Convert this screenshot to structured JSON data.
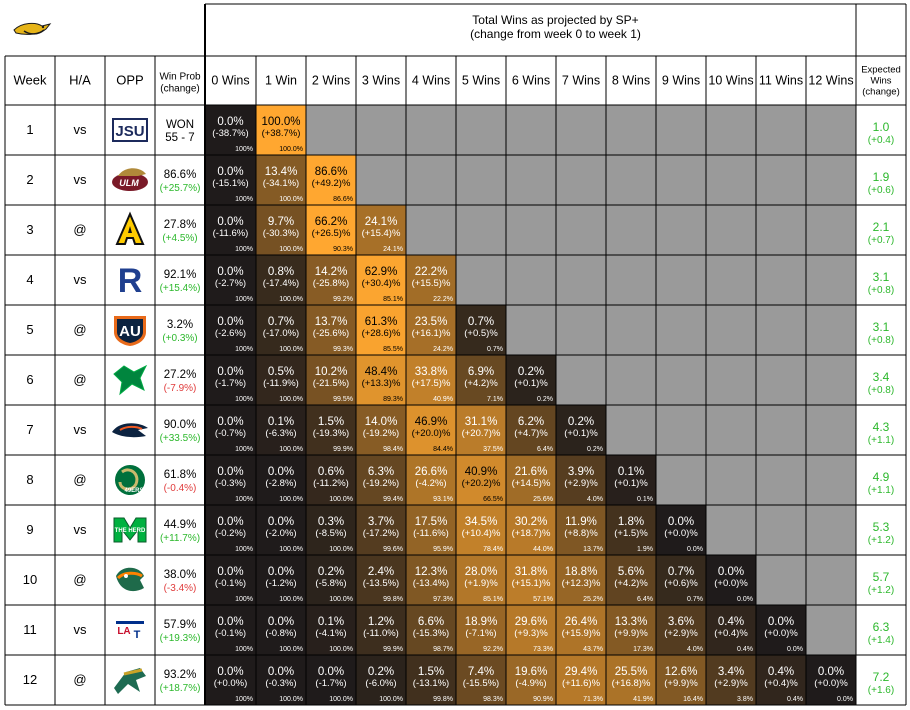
{
  "chart_data": {
    "type": "table",
    "title_line1": "Total Wins as projected by SP+",
    "title_line2": "(change from week 0 to week 1)",
    "header": {
      "week": "Week",
      "ha": "H/A",
      "opp": "OPP",
      "winprob_line1": "Win Prob",
      "winprob_line2": "(change)",
      "expected_line1": "Expected",
      "expected_line2": "Wins",
      "expected_line3": "(change)"
    },
    "win_columns": [
      "0 Wins",
      "1 Win",
      "2 Wins",
      "3 Wins",
      "4 Wins",
      "5 Wins",
      "6 Wins",
      "7 Wins",
      "8 Wins",
      "9 Wins",
      "10 Wins",
      "11 Wins",
      "12 Wins"
    ],
    "logos": {
      "team": "golden-eagle-logo",
      "opponents": [
        "jsu-logo",
        "ulm-logo",
        "app-state-logo",
        "rice-logo",
        "auburn-logo",
        "north-texas-logo",
        "utsa-logo",
        "charlotte-logo",
        "marshall-logo",
        "utep-logo",
        "louisiana-tech-logo",
        "uab-logo"
      ]
    },
    "colors": {
      "dark": "#1f1b1b",
      "bright": "#ffa730",
      "gray": "#9a9a9a",
      "positive": "#2db82d",
      "negative": "#e03c3c"
    },
    "rows": [
      {
        "week": "1",
        "ha": "vs",
        "wp_main": "WON",
        "wp_sub": "55 - 7",
        "wp_sub_sign": "neutral",
        "exp": "1.0",
        "exp_change": "(+0.4)",
        "cells": [
          [
            "0.0%",
            "(-38.7%)",
            "100%"
          ],
          [
            "100.0%",
            "(+38.7%)",
            "100.0%"
          ]
        ]
      },
      {
        "week": "2",
        "ha": "vs",
        "wp_main": "86.6%",
        "wp_sub": "(+25.7%)",
        "wp_sub_sign": "pos",
        "exp": "1.9",
        "exp_change": "(+0.6)",
        "cells": [
          [
            "0.0%",
            "(-15.1%)",
            "100%"
          ],
          [
            "13.4%",
            "(-34.1%)",
            "100.0%"
          ],
          [
            "86.6%",
            "(+49.2)%",
            "86.6%"
          ]
        ]
      },
      {
        "week": "3",
        "ha": "@",
        "wp_main": "27.8%",
        "wp_sub": "(+4.5%)",
        "wp_sub_sign": "pos",
        "exp": "2.1",
        "exp_change": "(+0.7)",
        "cells": [
          [
            "0.0%",
            "(-11.6%)",
            "100%"
          ],
          [
            "9.7%",
            "(-30.3%)",
            "100.0%"
          ],
          [
            "66.2%",
            "(+26.5)%",
            "90.3%"
          ],
          [
            "24.1%",
            "(+15.4)%",
            "24.1%"
          ]
        ]
      },
      {
        "week": "4",
        "ha": "vs",
        "wp_main": "92.1%",
        "wp_sub": "(+15.4%)",
        "wp_sub_sign": "pos",
        "exp": "3.1",
        "exp_change": "(+0.8)",
        "cells": [
          [
            "0.0%",
            "(-2.7%)",
            "100%"
          ],
          [
            "0.8%",
            "(-17.4%)",
            "100.0%"
          ],
          [
            "14.2%",
            "(-25.8%)",
            "99.2%"
          ],
          [
            "62.9%",
            "(+30.4)%",
            "85.1%"
          ],
          [
            "22.2%",
            "(+15.5)%",
            "22.2%"
          ]
        ]
      },
      {
        "week": "5",
        "ha": "@",
        "wp_main": "3.2%",
        "wp_sub": "(+0.3%)",
        "wp_sub_sign": "pos",
        "exp": "3.1",
        "exp_change": "(+0.8)",
        "cells": [
          [
            "0.0%",
            "(-2.6%)",
            "100%"
          ],
          [
            "0.7%",
            "(-17.0%)",
            "100.0%"
          ],
          [
            "13.7%",
            "(-25.6%)",
            "99.3%"
          ],
          [
            "61.3%",
            "(+28.6)%",
            "85.5%"
          ],
          [
            "23.5%",
            "(+16.1)%",
            "24.2%"
          ],
          [
            "0.7%",
            "(+0.5)%",
            "0.7%"
          ]
        ]
      },
      {
        "week": "6",
        "ha": "@",
        "wp_main": "27.2%",
        "wp_sub": "(-7.9%)",
        "wp_sub_sign": "neg",
        "exp": "3.4",
        "exp_change": "(+0.8)",
        "cells": [
          [
            "0.0%",
            "(-1.7%)",
            "100%"
          ],
          [
            "0.5%",
            "(-11.9%)",
            "100.0%"
          ],
          [
            "10.2%",
            "(-21.5%)",
            "99.5%"
          ],
          [
            "48.4%",
            "(+13.3)%",
            "89.3%"
          ],
          [
            "33.8%",
            "(+17.5)%",
            "40.9%"
          ],
          [
            "6.9%",
            "(+4.2)%",
            "7.1%"
          ],
          [
            "0.2%",
            "(+0.1)%",
            "0.2%"
          ]
        ]
      },
      {
        "week": "7",
        "ha": "vs",
        "wp_main": "90.0%",
        "wp_sub": "(+33.5%)",
        "wp_sub_sign": "pos",
        "exp": "4.3",
        "exp_change": "(+1.1)",
        "cells": [
          [
            "0.0%",
            "(-0.7%)",
            "100%"
          ],
          [
            "0.1%",
            "(-6.3%)",
            "100.0%"
          ],
          [
            "1.5%",
            "(-19.3%)",
            "99.9%"
          ],
          [
            "14.0%",
            "(-19.2%)",
            "98.4%"
          ],
          [
            "46.9%",
            "(+20.0)%",
            "84.4%"
          ],
          [
            "31.1%",
            "(+20.7)%",
            "37.5%"
          ],
          [
            "6.2%",
            "(+4.7)%",
            "6.4%"
          ],
          [
            "0.2%",
            "(+0.1)%",
            "0.2%"
          ]
        ]
      },
      {
        "week": "8",
        "ha": "@",
        "wp_main": "61.8%",
        "wp_sub": "(-0.4%)",
        "wp_sub_sign": "neg",
        "exp": "4.9",
        "exp_change": "(+1.1)",
        "cells": [
          [
            "0.0%",
            "(-0.3%)",
            "100%"
          ],
          [
            "0.0%",
            "(-2.8%)",
            "100.0%"
          ],
          [
            "0.6%",
            "(-11.2%)",
            "100.0%"
          ],
          [
            "6.3%",
            "(-19.2%)",
            "99.4%"
          ],
          [
            "26.6%",
            "(-4.2%)",
            "93.1%"
          ],
          [
            "40.9%",
            "(+20.2)%",
            "66.5%"
          ],
          [
            "21.6%",
            "(+14.5)%",
            "25.6%"
          ],
          [
            "3.9%",
            "(+2.9)%",
            "4.0%"
          ],
          [
            "0.1%",
            "(+0.1)%",
            "0.1%"
          ]
        ]
      },
      {
        "week": "9",
        "ha": "vs",
        "wp_main": "44.9%",
        "wp_sub": "(+11.7%)",
        "wp_sub_sign": "pos",
        "exp": "5.3",
        "exp_change": "(+1.2)",
        "cells": [
          [
            "0.0%",
            "(-0.2%)",
            "100%"
          ],
          [
            "0.0%",
            "(-2.0%)",
            "100.0%"
          ],
          [
            "0.3%",
            "(-8.5%)",
            "100.0%"
          ],
          [
            "3.7%",
            "(-17.2%)",
            "99.6%"
          ],
          [
            "17.5%",
            "(-11.6%)",
            "95.9%"
          ],
          [
            "34.5%",
            "(+10.4)%",
            "78.4%"
          ],
          [
            "30.2%",
            "(+18.7)%",
            "44.0%"
          ],
          [
            "11.9%",
            "(+8.8)%",
            "13.7%"
          ],
          [
            "1.8%",
            "(+1.5)%",
            "1.9%"
          ],
          [
            "0.0%",
            "(+0.0)%",
            "0.0%"
          ]
        ]
      },
      {
        "week": "10",
        "ha": "@",
        "wp_main": "38.0%",
        "wp_sub": "(-3.4%)",
        "wp_sub_sign": "neg",
        "exp": "5.7",
        "exp_change": "(+1.2)",
        "cells": [
          [
            "0.0%",
            "(-0.1%)",
            "100%"
          ],
          [
            "0.0%",
            "(-1.2%)",
            "100.0%"
          ],
          [
            "0.2%",
            "(-5.8%)",
            "100.0%"
          ],
          [
            "2.4%",
            "(-13.5%)",
            "99.8%"
          ],
          [
            "12.3%",
            "(-13.4%)",
            "97.3%"
          ],
          [
            "28.0%",
            "(+1.9)%",
            "85.1%"
          ],
          [
            "31.8%",
            "(+15.1)%",
            "57.1%"
          ],
          [
            "18.8%",
            "(+12.3)%",
            "25.2%"
          ],
          [
            "5.6%",
            "(+4.2)%",
            "6.4%"
          ],
          [
            "0.7%",
            "(+0.6)%",
            "0.7%"
          ],
          [
            "0.0%",
            "(+0.0)%",
            "0.0%"
          ]
        ]
      },
      {
        "week": "11",
        "ha": "vs",
        "wp_main": "57.9%",
        "wp_sub": "(+19.3%)",
        "wp_sub_sign": "pos",
        "exp": "6.3",
        "exp_change": "(+1.4)",
        "cells": [
          [
            "0.0%",
            "(-0.1%)",
            "100%"
          ],
          [
            "0.0%",
            "(-0.8%)",
            "100.0%"
          ],
          [
            "0.1%",
            "(-4.1%)",
            "100.0%"
          ],
          [
            "1.2%",
            "(-11.0%)",
            "99.9%"
          ],
          [
            "6.6%",
            "(-15.3%)",
            "98.7%"
          ],
          [
            "18.9%",
            "(-7.1%)",
            "92.2%"
          ],
          [
            "29.6%",
            "(+9.3)%",
            "73.3%"
          ],
          [
            "26.4%",
            "(+15.9)%",
            "43.7%"
          ],
          [
            "13.3%",
            "(+9.9)%",
            "17.3%"
          ],
          [
            "3.6%",
            "(+2.9)%",
            "4.0%"
          ],
          [
            "0.4%",
            "(+0.4)%",
            "0.4%"
          ],
          [
            "0.0%",
            "(+0.0)%",
            "0.0%"
          ]
        ]
      },
      {
        "week": "12",
        "ha": "@",
        "wp_main": "93.2%",
        "wp_sub": "(+18.7%)",
        "wp_sub_sign": "pos",
        "exp": "7.2",
        "exp_change": "(+1.6)",
        "cells": [
          [
            "0.0%",
            "(+0.0%)",
            "100%"
          ],
          [
            "0.0%",
            "(-0.3%)",
            "100.0%"
          ],
          [
            "0.0%",
            "(-1.7%)",
            "100.0%"
          ],
          [
            "0.2%",
            "(-6.0%)",
            "100.0%"
          ],
          [
            "1.5%",
            "(-13.1%)",
            "99.8%"
          ],
          [
            "7.4%",
            "(-15.5%)",
            "98.3%"
          ],
          [
            "19.6%",
            "(-4.9%)",
            "90.9%"
          ],
          [
            "29.4%",
            "(+11.6)%",
            "71.3%"
          ],
          [
            "25.5%",
            "(+16.8)%",
            "41.9%"
          ],
          [
            "12.6%",
            "(+9.9)%",
            "16.4%"
          ],
          [
            "3.4%",
            "(+2.9)%",
            "3.8%"
          ],
          [
            "0.4%",
            "(+0.4)%",
            "0.4%"
          ],
          [
            "0.0%",
            "(+0.0)%",
            "0.0%"
          ]
        ]
      }
    ]
  }
}
